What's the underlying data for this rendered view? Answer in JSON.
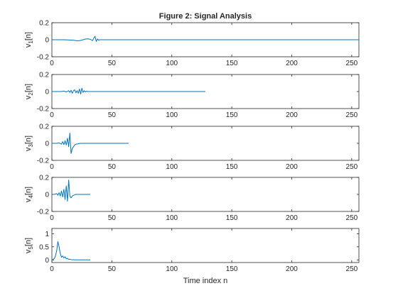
{
  "title": "Figure 2: Signal Analysis",
  "colors": {
    "line": "#0072BD",
    "axis": "#262626",
    "background": "#ffffff"
  },
  "chart_data": [
    {
      "type": "line",
      "ylabel_main": "v",
      "ylabel_sub": "1",
      "ylabel_tail": "[n]",
      "xlim": [
        0,
        256
      ],
      "ylim": [
        -0.2,
        0.2
      ],
      "xticks": [
        "0",
        "50",
        "100",
        "150",
        "200",
        "250"
      ],
      "yticks": [
        "-0.2",
        "0",
        "0.2"
      ],
      "grid": false,
      "series": [
        {
          "x": [
            0,
            10,
            18,
            20,
            22,
            24,
            26,
            28,
            30,
            32,
            34,
            35,
            36,
            37,
            38,
            39,
            40,
            50,
            100,
            150,
            200,
            256
          ],
          "values": [
            0,
            0,
            -0.005,
            -0.01,
            -0.012,
            -0.008,
            0,
            0.008,
            0.01,
            0.005,
            -0.01,
            0.02,
            0.04,
            -0.02,
            0.01,
            -0.005,
            0,
            0,
            0,
            0,
            0,
            0
          ]
        }
      ]
    },
    {
      "type": "line",
      "ylabel_main": "v",
      "ylabel_sub": "2",
      "ylabel_tail": "[n]",
      "xlim": [
        0,
        256
      ],
      "ylim": [
        -0.2,
        0.2
      ],
      "xticks": [
        "0",
        "50",
        "100",
        "150",
        "200",
        "250"
      ],
      "yticks": [
        "-0.2",
        "0",
        "0.2"
      ],
      "grid": false,
      "series": [
        {
          "x": [
            0,
            8,
            10,
            12,
            14,
            15,
            16,
            17,
            18,
            19,
            20,
            21,
            22,
            23,
            24,
            25,
            26,
            27,
            28,
            29,
            30,
            32,
            35,
            40,
            60,
            100,
            128
          ],
          "values": [
            0,
            0,
            0.005,
            -0.005,
            0.01,
            -0.01,
            0.015,
            -0.02,
            0.01,
            0.02,
            -0.015,
            0.01,
            -0.02,
            0.03,
            -0.03,
            0.04,
            -0.01,
            0.01,
            -0.005,
            0.005,
            0,
            0,
            0,
            0,
            0,
            0,
            0
          ]
        }
      ]
    },
    {
      "type": "line",
      "ylabel_main": "v",
      "ylabel_sub": "3",
      "ylabel_tail": "[n]",
      "xlim": [
        0,
        256
      ],
      "ylim": [
        -0.2,
        0.2
      ],
      "xticks": [
        "0",
        "50",
        "100",
        "150",
        "200",
        "250"
      ],
      "yticks": [
        "-0.2",
        "0",
        "0.2"
      ],
      "grid": false,
      "series": [
        {
          "x": [
            0,
            4,
            6,
            8,
            9,
            10,
            11,
            12,
            13,
            14,
            15,
            16,
            17,
            18,
            19,
            20,
            22,
            24,
            26,
            28,
            32,
            40,
            64
          ],
          "values": [
            0,
            0,
            0.005,
            -0.01,
            0.02,
            -0.015,
            0.03,
            -0.02,
            0.06,
            -0.04,
            0.12,
            -0.12,
            -0.06,
            -0.04,
            -0.02,
            -0.01,
            -0.005,
            0,
            0,
            0,
            0,
            0,
            0
          ]
        }
      ]
    },
    {
      "type": "line",
      "ylabel_main": "v",
      "ylabel_sub": "4",
      "ylabel_tail": "[n]",
      "xlim": [
        0,
        256
      ],
      "ylim": [
        -0.2,
        0.2
      ],
      "xticks": [
        "0",
        "50",
        "100",
        "150",
        "200",
        "250"
      ],
      "yticks": [
        "-0.2",
        "0",
        "0.2"
      ],
      "grid": false,
      "series": [
        {
          "x": [
            0,
            2,
            4,
            5,
            6,
            7,
            8,
            9,
            10,
            11,
            12,
            13,
            14,
            15,
            16,
            17,
            18,
            20,
            22,
            24,
            28,
            32
          ],
          "values": [
            0,
            0,
            0.01,
            -0.01,
            0.02,
            -0.02,
            0.04,
            -0.03,
            0.06,
            -0.06,
            0.1,
            -0.08,
            0.17,
            -0.02,
            -0.04,
            -0.02,
            -0.01,
            0,
            0,
            0,
            0,
            0
          ]
        }
      ]
    },
    {
      "type": "line",
      "ylabel_main": "v",
      "ylabel_sub": "5",
      "ylabel_tail": "[n]",
      "xlim": [
        0,
        256
      ],
      "ylim": [
        -0.1,
        1.2
      ],
      "xticks": [
        "0",
        "50",
        "100",
        "150",
        "200",
        "250"
      ],
      "yticks": [
        "0",
        "0.5",
        "1"
      ],
      "grid": false,
      "series": [
        {
          "x": [
            0,
            1,
            2,
            3,
            4,
            5,
            6,
            7,
            8,
            9,
            10,
            11,
            12,
            13,
            14,
            15,
            16,
            18,
            20,
            22,
            24,
            26,
            28,
            30,
            32
          ],
          "values": [
            0,
            0.02,
            0.05,
            0.15,
            0.35,
            0.7,
            0.5,
            0.25,
            0.1,
            0.15,
            0.08,
            0.12,
            0.04,
            0.06,
            0.02,
            0.03,
            0.01,
            0.005,
            0,
            0,
            0,
            0,
            0,
            0,
            0
          ]
        }
      ]
    }
  ],
  "xlabel": "Time index n"
}
